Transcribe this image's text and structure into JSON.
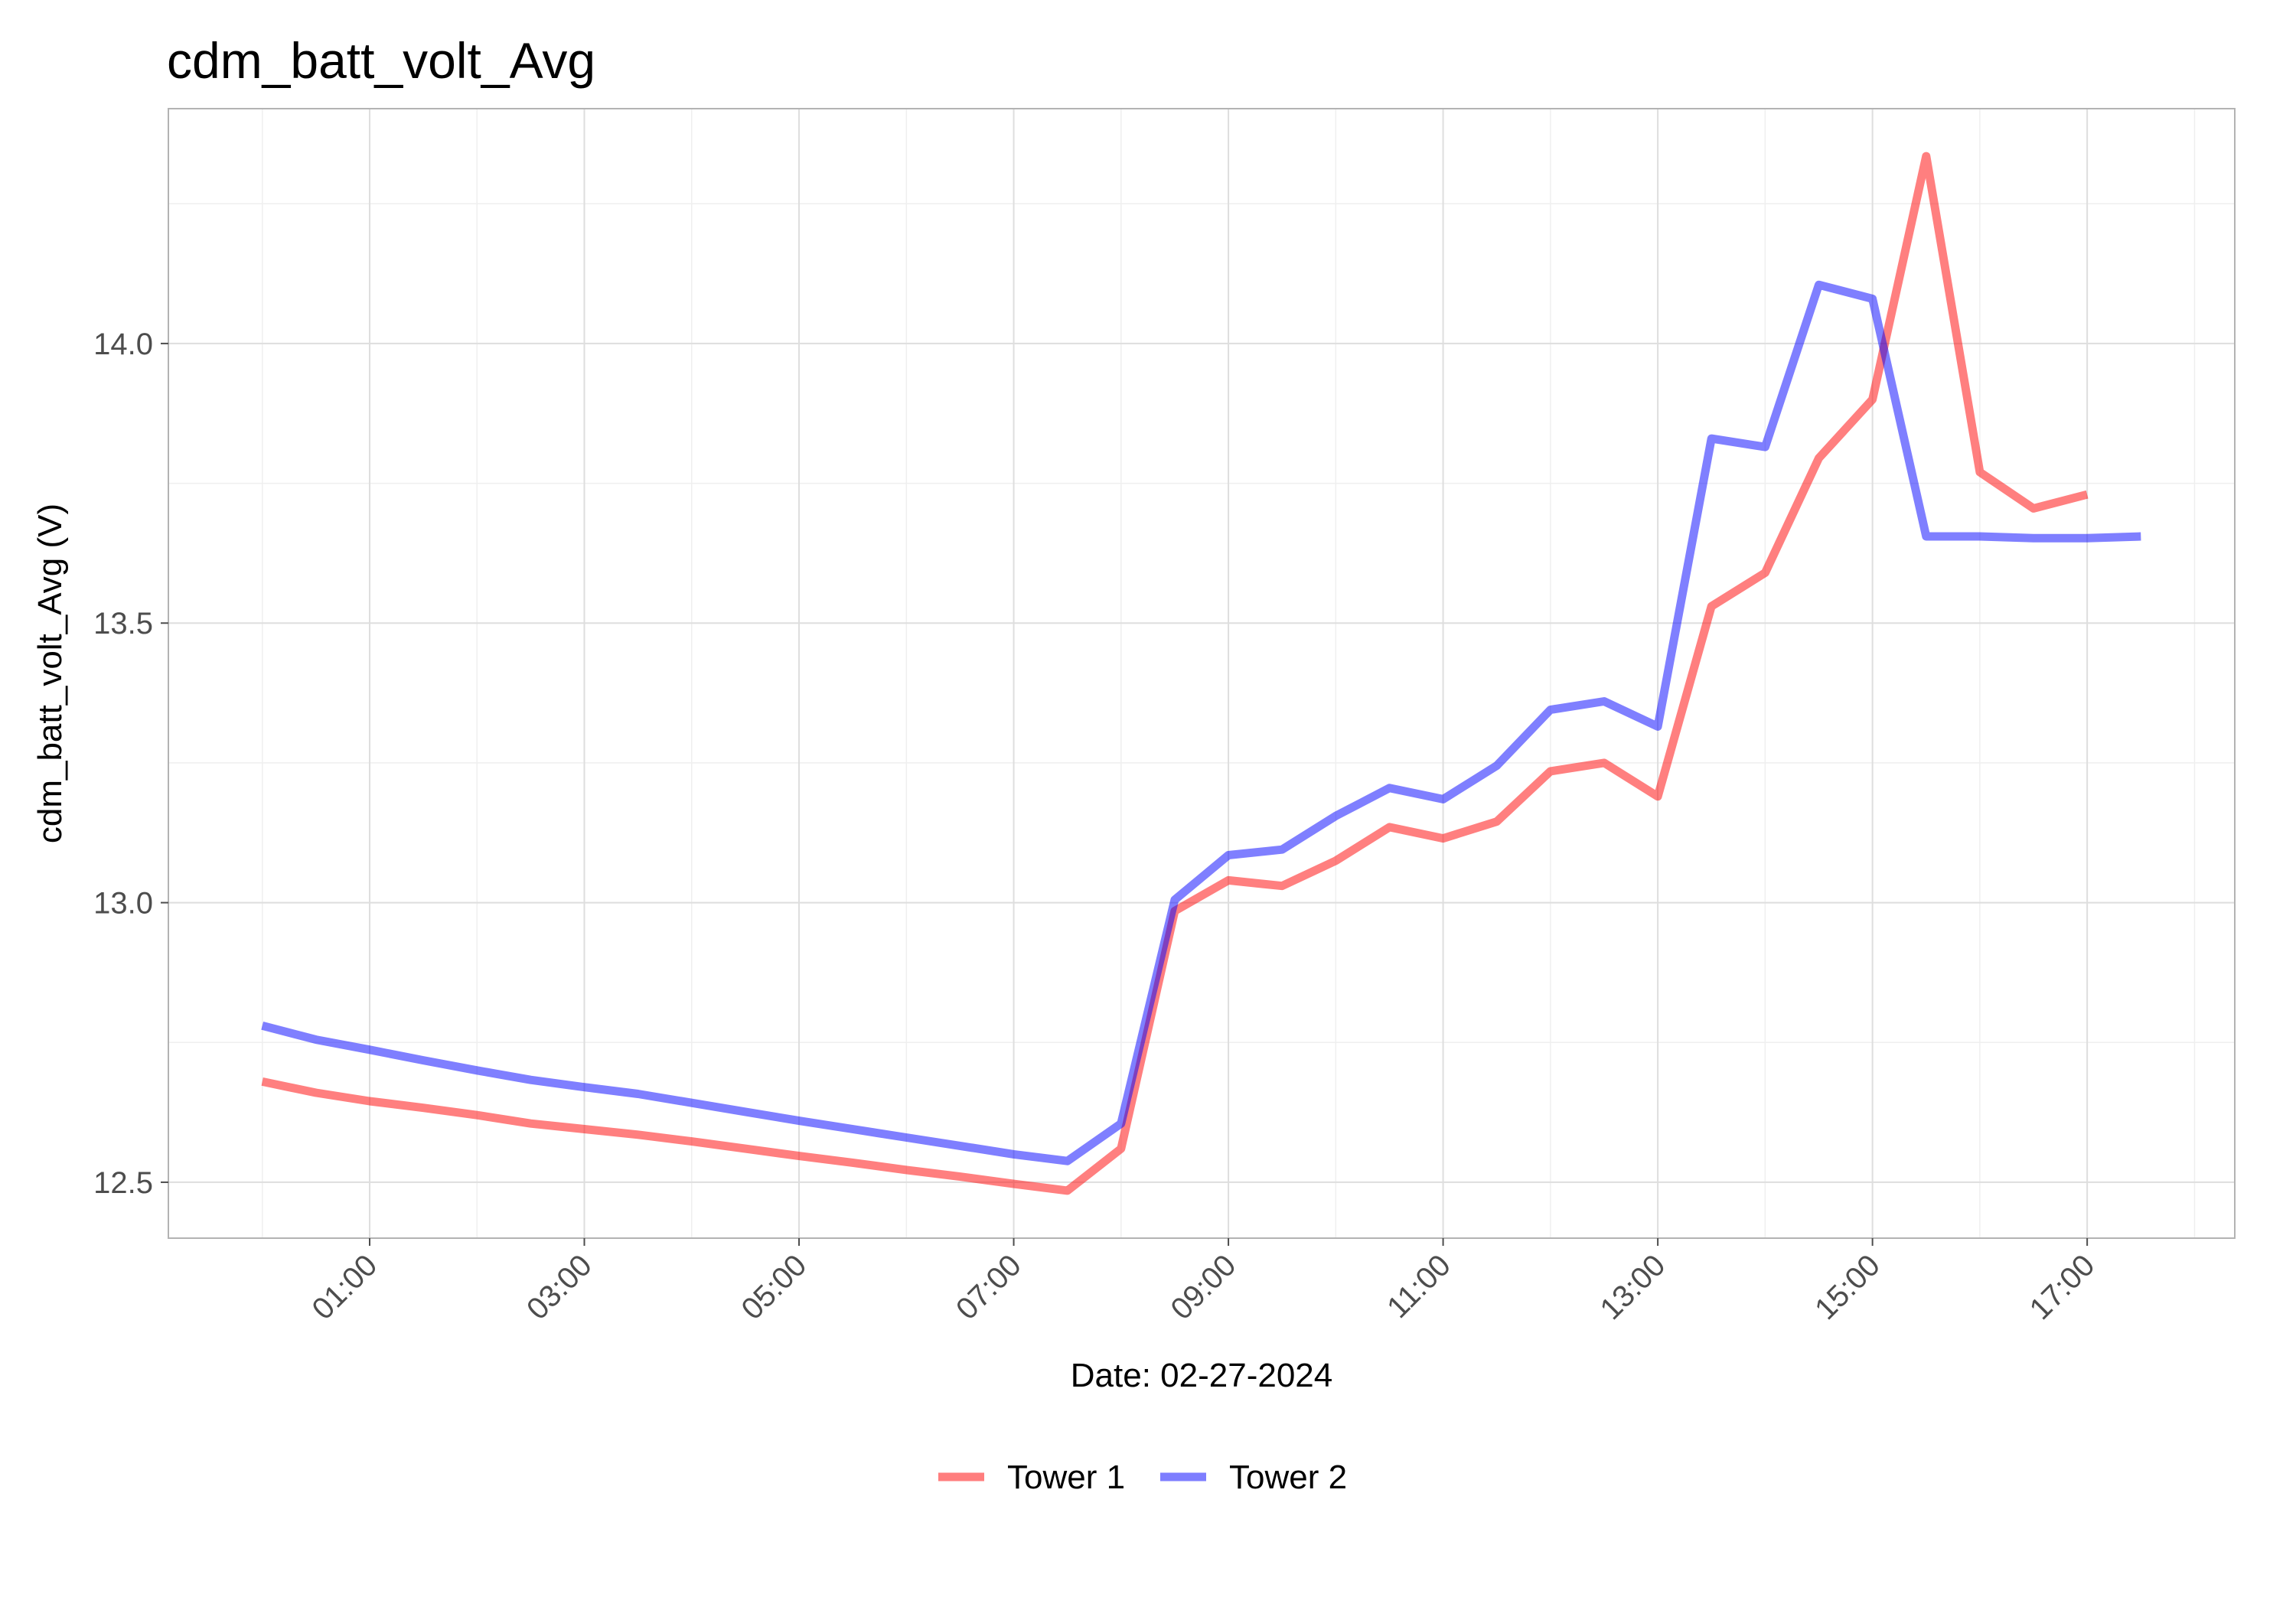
{
  "chart_data": {
    "type": "line",
    "title": "cdm_batt_volt_Avg",
    "xlabel": "Date: 02-27-2024",
    "ylabel": "cdm_batt_volt_Avg (V)",
    "x_unit": "hours",
    "xlim": [
      -0.875,
      18.375
    ],
    "ylim": [
      12.4,
      14.42
    ],
    "x_ticks": [
      {
        "value": 1,
        "label": "01:00"
      },
      {
        "value": 3,
        "label": "03:00"
      },
      {
        "value": 5,
        "label": "05:00"
      },
      {
        "value": 7,
        "label": "07:00"
      },
      {
        "value": 9,
        "label": "09:00"
      },
      {
        "value": 11,
        "label": "11:00"
      },
      {
        "value": 13,
        "label": "13:00"
      },
      {
        "value": 15,
        "label": "15:00"
      },
      {
        "value": 17,
        "label": "17:00"
      }
    ],
    "y_ticks": [
      {
        "value": 12.5,
        "label": "12.5"
      },
      {
        "value": 13.0,
        "label": "13.0"
      },
      {
        "value": 13.5,
        "label": "13.5"
      },
      {
        "value": 14.0,
        "label": "14.0"
      }
    ],
    "grid": true,
    "legend_position": "bottom",
    "series": [
      {
        "name": "Tower 1",
        "color": "#ff0000",
        "points": [
          [
            0,
            12.68
          ],
          [
            0.5,
            12.66
          ],
          [
            1,
            12.645
          ],
          [
            1.5,
            12.633
          ],
          [
            2,
            12.62
          ],
          [
            2.5,
            12.605
          ],
          [
            3,
            12.595
          ],
          [
            3.5,
            12.585
          ],
          [
            4,
            12.573
          ],
          [
            4.5,
            12.56
          ],
          [
            5,
            12.547
          ],
          [
            5.5,
            12.535
          ],
          [
            6,
            12.522
          ],
          [
            6.5,
            12.51
          ],
          [
            7,
            12.497
          ],
          [
            7.5,
            12.485
          ],
          [
            8,
            12.56
          ],
          [
            8.5,
            12.985
          ],
          [
            9,
            13.04
          ],
          [
            9.5,
            13.03
          ],
          [
            10,
            13.075
          ],
          [
            10.5,
            13.135
          ],
          [
            11,
            13.115
          ],
          [
            11.5,
            13.145
          ],
          [
            12,
            13.235
          ],
          [
            12.5,
            13.25
          ],
          [
            13,
            13.19
          ],
          [
            13.5,
            13.53
          ],
          [
            14,
            13.59
          ],
          [
            14.5,
            13.795
          ],
          [
            15,
            13.9
          ],
          [
            15.5,
            14.335
          ],
          [
            16,
            13.77
          ],
          [
            16.5,
            13.705
          ],
          [
            17,
            13.73
          ]
        ]
      },
      {
        "name": "Tower 2",
        "color": "#0000ff",
        "points": [
          [
            0,
            12.78
          ],
          [
            0.5,
            12.755
          ],
          [
            1,
            12.737
          ],
          [
            1.5,
            12.718
          ],
          [
            2,
            12.7
          ],
          [
            2.5,
            12.683
          ],
          [
            3,
            12.67
          ],
          [
            3.5,
            12.658
          ],
          [
            4,
            12.642
          ],
          [
            4.5,
            12.626
          ],
          [
            5,
            12.61
          ],
          [
            5.5,
            12.595
          ],
          [
            6,
            12.58
          ],
          [
            6.5,
            12.565
          ],
          [
            7,
            12.55
          ],
          [
            7.5,
            12.538
          ],
          [
            8,
            12.605
          ],
          [
            8.5,
            13.005
          ],
          [
            9,
            13.085
          ],
          [
            9.5,
            13.095
          ],
          [
            10,
            13.155
          ],
          [
            10.5,
            13.205
          ],
          [
            11,
            13.185
          ],
          [
            11.5,
            13.245
          ],
          [
            12,
            13.345
          ],
          [
            12.5,
            13.36
          ],
          [
            13,
            13.315
          ],
          [
            13.5,
            13.83
          ],
          [
            14,
            13.815
          ],
          [
            14.5,
            14.105
          ],
          [
            15,
            14.08
          ],
          [
            15.5,
            13.655
          ],
          [
            16,
            13.655
          ],
          [
            16.5,
            13.652
          ],
          [
            17,
            13.652
          ],
          [
            17.5,
            13.655
          ]
        ]
      }
    ]
  }
}
